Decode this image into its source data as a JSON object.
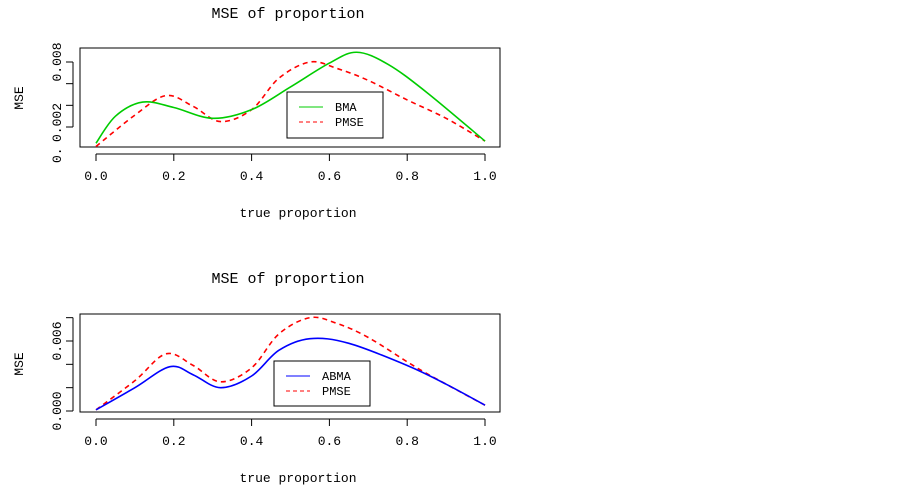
{
  "chart_data": [
    {
      "type": "line",
      "title": "MSE of proportion",
      "xlabel": "true proportion",
      "ylabel": "MSE",
      "xlim": [
        0,
        1
      ],
      "ylim": [
        0.00015,
        0.0093
      ],
      "xticks": [
        0,
        0.2,
        0.4,
        0.6,
        0.8,
        1.0
      ],
      "xtick_labels": [
        "0.0",
        "0.2",
        "0.4",
        "0.6",
        "0.8",
        "1.0"
      ],
      "yticks": [
        0.002,
        0.004,
        0.006,
        0.008
      ],
      "ytick_labels": [
        {
          "value": 0.0,
          "label": "0."
        },
        {
          "value": 0.002,
          "label": "0.002"
        },
        {
          "value": 0.008,
          "label": "0.008"
        }
      ],
      "legend_position": "center-right",
      "series": [
        {
          "name": "BMA",
          "color": "#00cc00",
          "dash": "solid",
          "x": [
            0,
            0.05,
            0.12,
            0.2,
            0.3,
            0.4,
            0.5,
            0.6,
            0.67,
            0.75,
            0.85,
            1.0
          ],
          "y": [
            0.0005,
            0.003,
            0.0043,
            0.0038,
            0.0028,
            0.0036,
            0.0057,
            0.0079,
            0.0089,
            0.0078,
            0.0052,
            0.0007
          ]
        },
        {
          "name": "PMSE",
          "color": "#ff0000",
          "dash": "dashed",
          "x": [
            0,
            0.1,
            0.18,
            0.25,
            0.32,
            0.4,
            0.47,
            0.55,
            0.62,
            0.7,
            0.8,
            0.9,
            1.0
          ],
          "y": [
            0.0002,
            0.0031,
            0.0049,
            0.0039,
            0.0025,
            0.0036,
            0.0065,
            0.008,
            0.0074,
            0.0063,
            0.0045,
            0.0028,
            0.0007
          ]
        }
      ]
    },
    {
      "type": "line",
      "title": "MSE of proportion",
      "xlabel": "true proportion",
      "ylabel": "MSE",
      "xlim": [
        0,
        1
      ],
      "ylim": [
        -0.0001,
        0.0084
      ],
      "xticks": [
        0,
        0.2,
        0.4,
        0.6,
        0.8,
        1.0
      ],
      "xtick_labels": [
        "0.0",
        "0.2",
        "0.4",
        "0.6",
        "0.8",
        "1.0"
      ],
      "yticks": [
        0.0,
        0.002,
        0.004,
        0.006,
        0.008
      ],
      "ytick_labels": [
        {
          "value": 0.0,
          "label": "0.000"
        },
        {
          "value": 0.006,
          "label": "0.006"
        }
      ],
      "legend_position": "center-right",
      "series": [
        {
          "name": "ABMA",
          "color": "#0000ff",
          "dash": "solid",
          "x": [
            0,
            0.1,
            0.19,
            0.25,
            0.32,
            0.4,
            0.47,
            0.55,
            0.65,
            0.8,
            0.9,
            1.0
          ],
          "y": [
            0.0001,
            0.002,
            0.0038,
            0.0031,
            0.002,
            0.003,
            0.0052,
            0.0062,
            0.0058,
            0.0039,
            0.0023,
            0.0005
          ]
        },
        {
          "name": "PMSE",
          "color": "#ff0000",
          "dash": "dashed",
          "x": [
            0,
            0.1,
            0.18,
            0.25,
            0.32,
            0.4,
            0.47,
            0.55,
            0.62,
            0.7,
            0.82,
            0.9,
            1.0
          ],
          "y": [
            0.0001,
            0.0026,
            0.0049,
            0.0039,
            0.0025,
            0.0037,
            0.0066,
            0.008,
            0.0075,
            0.0063,
            0.0038,
            0.0023,
            0.0005
          ]
        }
      ]
    }
  ]
}
